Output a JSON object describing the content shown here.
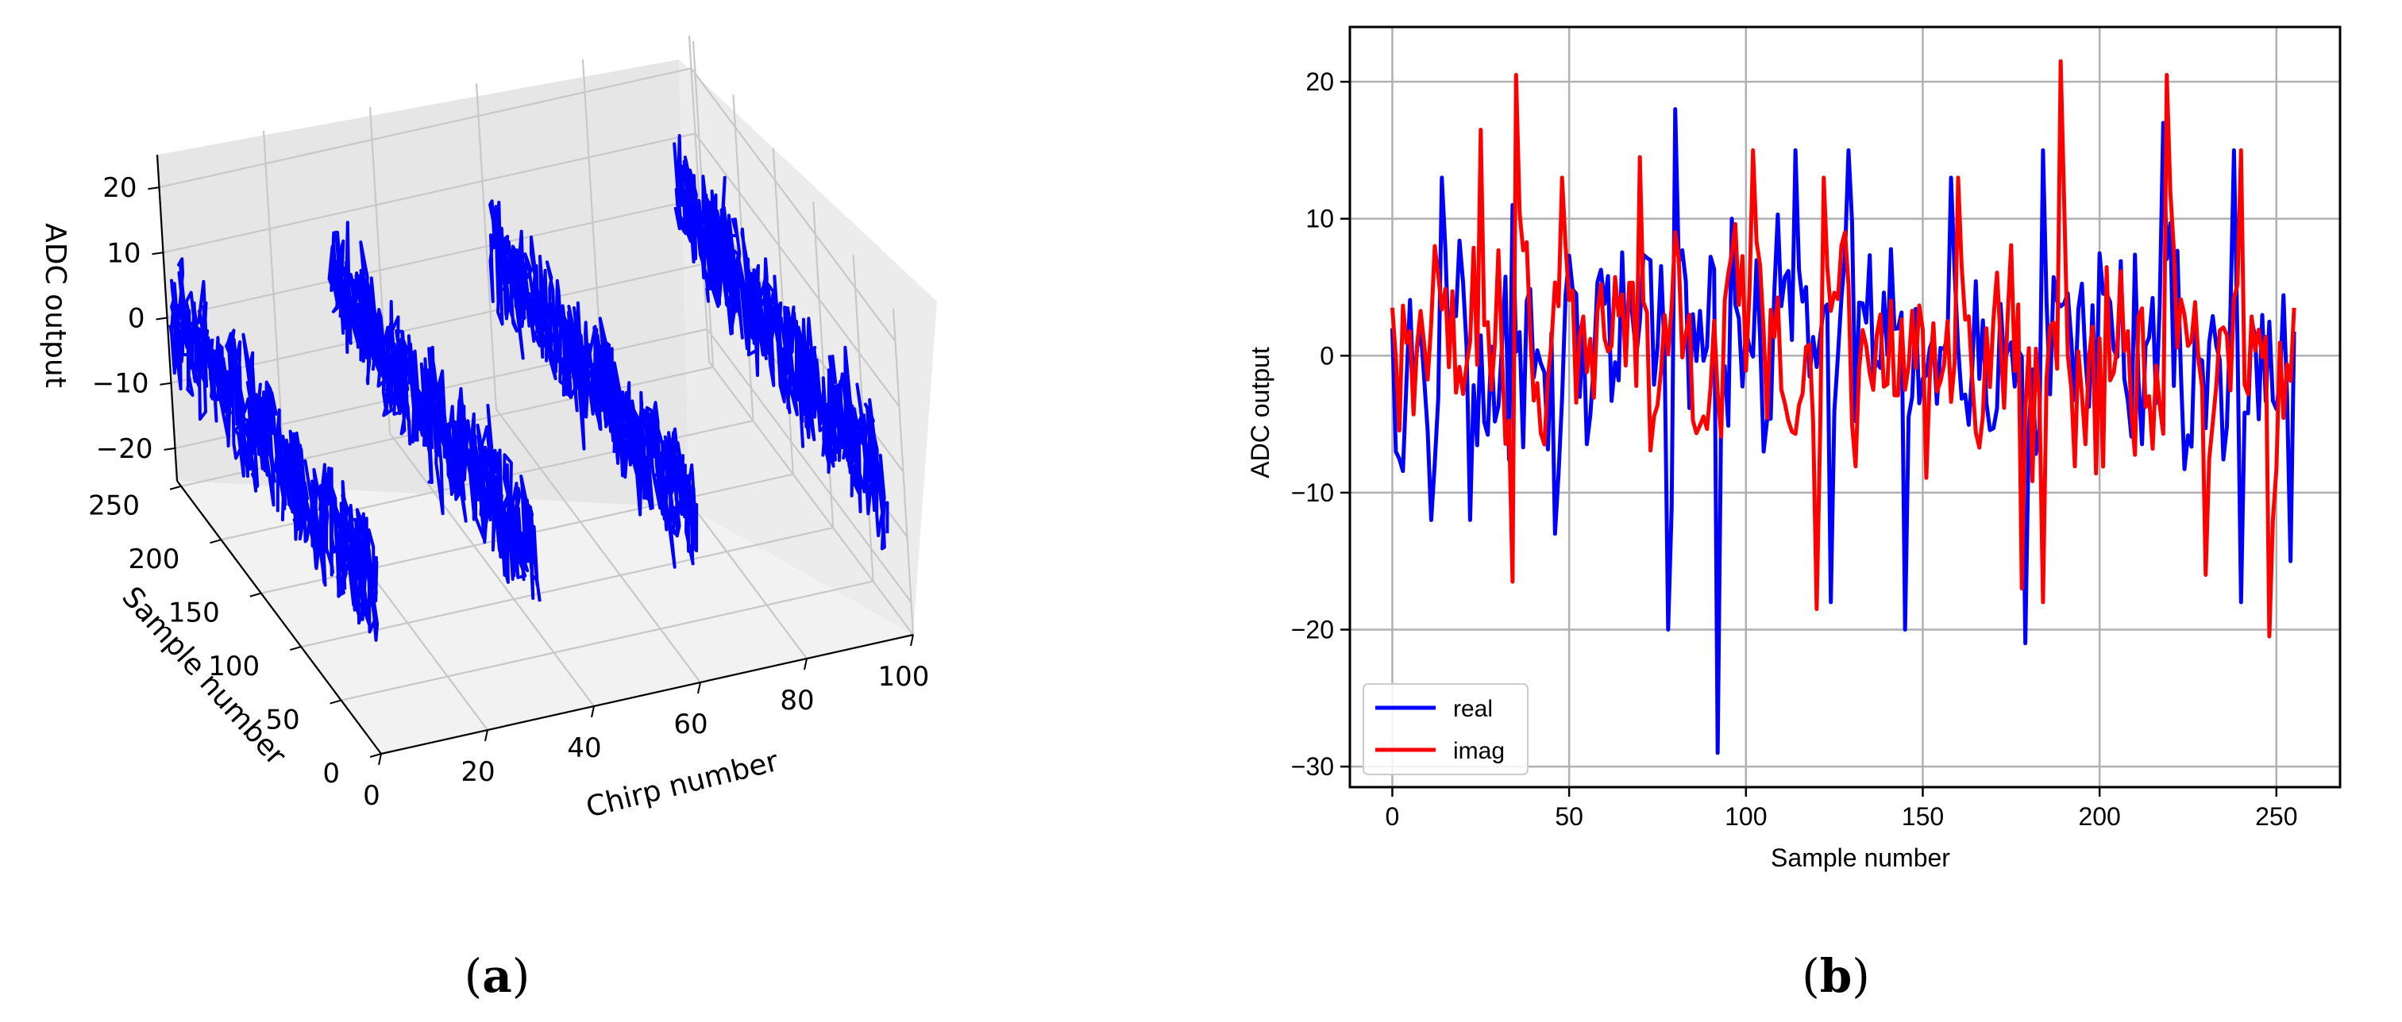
{
  "panels": [
    {
      "label_open": "(",
      "label_letter": "a",
      "label_close": ")"
    },
    {
      "label_open": "(",
      "label_letter": "b",
      "label_close": ")"
    }
  ],
  "chart_data": [
    {
      "type": "line",
      "projection": "3d",
      "xlabel": "Chirp number",
      "ylabel": "Sample number",
      "zlabel": "ADC output",
      "xticks": [
        0,
        20,
        40,
        60,
        80,
        100
      ],
      "yticks": [
        0,
        50,
        100,
        150,
        200,
        250
      ],
      "zticks": [
        -20,
        -10,
        0,
        10,
        20
      ],
      "xlim": [
        0,
        100
      ],
      "ylim": [
        0,
        255
      ],
      "zlim": [
        -25,
        25
      ],
      "grid": true,
      "series": [
        {
          "color": "#0000ff",
          "description": "ADC samples across chirps: four chirp groups at chirp ≈ 0, 30, 60, 95, each spanning samples 0–255, amplitude roughly −25 to 25"
        }
      ]
    },
    {
      "type": "line",
      "xlabel": "Sample number",
      "ylabel": "ADC output",
      "xticks": [
        0,
        50,
        100,
        150,
        200,
        250
      ],
      "yticks": [
        -30,
        -20,
        -10,
        0,
        10,
        20
      ],
      "xlim": [
        -12,
        268
      ],
      "ylim": [
        -31.5,
        24
      ],
      "grid": true,
      "legend_position": "lower-left",
      "series": [
        {
          "name": "real",
          "color": "#0000ff",
          "keypoints": [
            [
              0,
              2
            ],
            [
              1,
              -7
            ],
            [
              14,
              13
            ],
            [
              22,
              -12
            ],
            [
              34,
              11
            ],
            [
              46,
              -13
            ],
            [
              78,
              -20
            ],
            [
              80,
              18
            ],
            [
              92,
              -29
            ],
            [
              96,
              10
            ],
            [
              105,
              -7
            ],
            [
              114,
              15
            ],
            [
              124,
              -18
            ],
            [
              129,
              15
            ],
            [
              145,
              -20
            ],
            [
              158,
              13
            ],
            [
              179,
              -21
            ],
            [
              184,
              15
            ],
            [
              218,
              17
            ],
            [
              238,
              15
            ],
            [
              240,
              -18
            ],
            [
              254,
              -15
            ]
          ]
        },
        {
          "name": "imag",
          "color": "#ff0000",
          "keypoints": [
            [
              0,
              3.5
            ],
            [
              12,
              8
            ],
            [
              25,
              16.5
            ],
            [
              34,
              -16.5
            ],
            [
              35,
              20.5
            ],
            [
              48,
              13
            ],
            [
              70,
              14.5
            ],
            [
              102,
              15
            ],
            [
              120,
              -18.5
            ],
            [
              122,
              13
            ],
            [
              160,
              13
            ],
            [
              178,
              -17
            ],
            [
              184,
              -18
            ],
            [
              189,
              21.5
            ],
            [
              219,
              20.5
            ],
            [
              230,
              -16
            ],
            [
              240,
              15
            ],
            [
              248,
              -20.5
            ],
            [
              255,
              3.5
            ]
          ]
        }
      ]
    }
  ]
}
